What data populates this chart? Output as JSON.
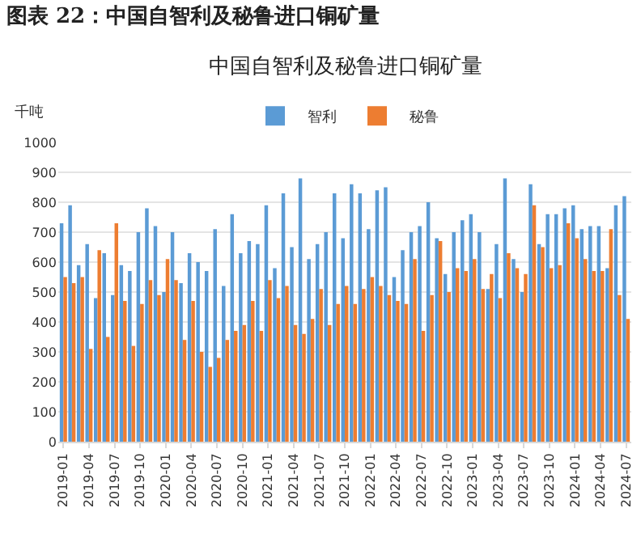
{
  "chart_data": {
    "type": "bar",
    "title": "图表 22：中国自智利及秘鲁进口铜矿量",
    "subtitle": "中国自智利及秘鲁进口铜矿量",
    "ylabel": "千吨",
    "categories": [
      "2019-01",
      null,
      null,
      "2019-04",
      null,
      null,
      "2019-07",
      null,
      null,
      "2019-10",
      null,
      null,
      "2020-01",
      null,
      null,
      "2020-04",
      null,
      null,
      "2020-07",
      null,
      null,
      "2020-10",
      null,
      null,
      "2021-01",
      null,
      null,
      "2021-04",
      null,
      null,
      "2021-07",
      null,
      null,
      "2021-10",
      null,
      null,
      "2022-01",
      null,
      null,
      "2022-04",
      null,
      null,
      "2022-07",
      null,
      null,
      "2022-10",
      null,
      null,
      "2023-01",
      null,
      null,
      "2023-04",
      null,
      null,
      "2023-07",
      null,
      null,
      "2023-10",
      null,
      null,
      "2024-01",
      null,
      null,
      "2024-04",
      null,
      null,
      "2024-07"
    ],
    "series": [
      {
        "name": "智利",
        "color": "#5b9bd5",
        "values": [
          730,
          790,
          590,
          660,
          480,
          630,
          490,
          590,
          570,
          700,
          780,
          720,
          500,
          700,
          530,
          630,
          600,
          570,
          710,
          520,
          760,
          630,
          670,
          660,
          790,
          580,
          830,
          650,
          880,
          610,
          660,
          700,
          830,
          680,
          860,
          830,
          710,
          840,
          850,
          550,
          640,
          700,
          720,
          800,
          680,
          560,
          700,
          740,
          760,
          700,
          510,
          660,
          880,
          610,
          500,
          860,
          660,
          760,
          760,
          780,
          790,
          710,
          720,
          720,
          580,
          790,
          820
        ]
      },
      {
        "name": "秘鲁",
        "color": "#ed7d31",
        "values": [
          550,
          530,
          550,
          310,
          640,
          350,
          730,
          470,
          320,
          460,
          540,
          490,
          610,
          540,
          340,
          470,
          300,
          250,
          280,
          340,
          370,
          390,
          470,
          370,
          540,
          480,
          520,
          390,
          360,
          410,
          510,
          390,
          460,
          520,
          460,
          510,
          550,
          520,
          490,
          470,
          460,
          610,
          370,
          490,
          670,
          500,
          580,
          570,
          610,
          510,
          560,
          480,
          630,
          580,
          560,
          790,
          650,
          580,
          590,
          730,
          680,
          610,
          570,
          570,
          710,
          490,
          410
        ]
      }
    ],
    "ylim": [
      0,
      1000
    ],
    "yticks": [
      0,
      100,
      200,
      300,
      400,
      500,
      600,
      700,
      800,
      900,
      1000
    ],
    "grid": "y",
    "legend": "top"
  }
}
